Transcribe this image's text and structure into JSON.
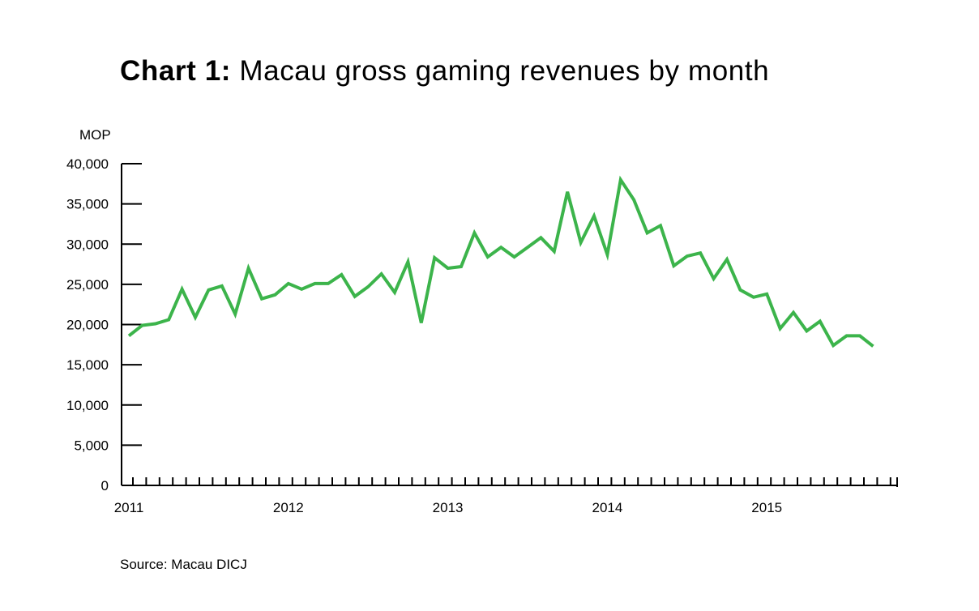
{
  "title_bold": "Chart 1:",
  "title_rest": "Macau gross gaming revenues by month",
  "source": "Source: Macau DICJ",
  "colors": {
    "series": "#3cb44b",
    "axis": "#000000"
  },
  "chart_data": {
    "type": "line",
    "title": "Chart 1: Macau gross gaming revenues by month",
    "ylabel": "MOP",
    "xlabel": "",
    "ylim": [
      0,
      40000
    ],
    "y_ticks": [
      0,
      5000,
      10000,
      15000,
      20000,
      25000,
      30000,
      35000,
      40000
    ],
    "y_tick_labels": [
      "0",
      "5,000",
      "10,000",
      "15,000",
      "20,000",
      "25,000",
      "30,000",
      "35,000",
      "40,000"
    ],
    "x_labels": [
      "2011",
      "2012",
      "2013",
      "2014",
      "2015"
    ],
    "x_start": "2011-01",
    "x_end": "2015-09",
    "grid": false,
    "series": [
      {
        "values": [
          18600,
          19900,
          20100,
          20600,
          24400,
          20900,
          24300,
          24800,
          21300,
          27000,
          23200,
          23700,
          25100,
          24400,
          25100,
          25100,
          26200,
          23500,
          24700,
          26300,
          24000,
          27800,
          20200,
          28300,
          27000,
          27200,
          31400,
          28400,
          29600,
          28400,
          29600,
          30800,
          29100,
          36500,
          30200,
          33500,
          28700,
          38000,
          35500,
          31400,
          32300,
          27300,
          28500,
          28900,
          25700,
          28100,
          24300,
          23400,
          23800,
          19500,
          21500,
          19200,
          20400,
          17400,
          18600,
          18600,
          17300
        ]
      }
    ]
  }
}
